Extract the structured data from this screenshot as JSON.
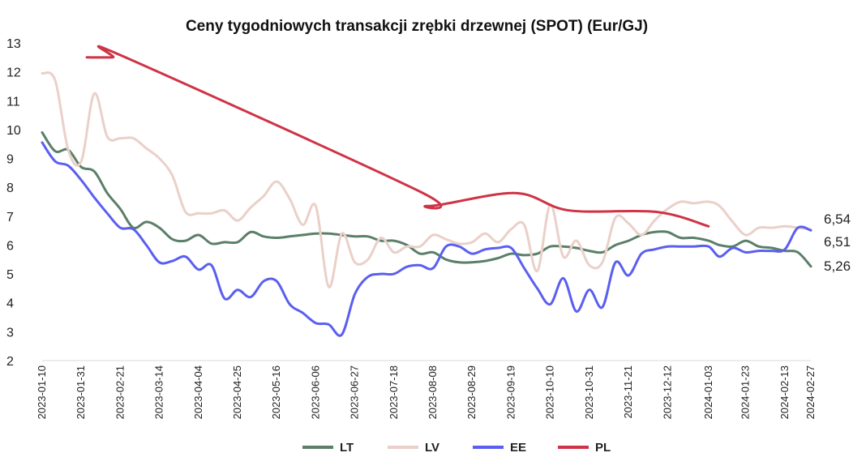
{
  "chart_data": {
    "type": "line",
    "title": "Ceny tygodniowych transakcji zrębki drzewnej (SPOT) (Eur/GJ)",
    "ylim": [
      2,
      13
    ],
    "yticks": [
      "2",
      "3",
      "4",
      "5",
      "6",
      "7",
      "8",
      "9",
      "10",
      "11",
      "12",
      "13"
    ],
    "grid": "none",
    "legend_position": "bottom",
    "x_labels": [
      "2023-01-10",
      "2023-01-31",
      "2023-02-21",
      "2023-03-14",
      "2023-04-04",
      "2023-04-25",
      "2023-05-16",
      "2023-06-06",
      "2023-06-27",
      "2023-07-18",
      "2023-08-08",
      "2023-08-29",
      "2023-09-19",
      "2023-10-10",
      "2023-10-31",
      "2023-11-21",
      "2023-12-12",
      "2024-01-03",
      "2024-01-23",
      "2024-02-13",
      "2024-02-27"
    ],
    "end_labels": [
      "6,54",
      "6,51",
      "5,26"
    ],
    "series": [
      {
        "name": "LT",
        "color": "#5b7f68",
        "points": [
          [
            "2023-01-10",
            9.9
          ],
          [
            "2023-01-17",
            9.25
          ],
          [
            "2023-01-24",
            9.3
          ],
          [
            "2023-01-31",
            8.7
          ],
          [
            "2023-02-07",
            8.55
          ],
          [
            "2023-02-14",
            7.8
          ],
          [
            "2023-02-21",
            7.25
          ],
          [
            "2023-02-28",
            6.6
          ],
          [
            "2023-03-07",
            6.8
          ],
          [
            "2023-03-14",
            6.6
          ],
          [
            "2023-03-21",
            6.2
          ],
          [
            "2023-03-28",
            6.15
          ],
          [
            "2023-04-04",
            6.35
          ],
          [
            "2023-04-11",
            6.05
          ],
          [
            "2023-04-18",
            6.1
          ],
          [
            "2023-04-25",
            6.1
          ],
          [
            "2023-05-02",
            6.45
          ],
          [
            "2023-05-09",
            6.3
          ],
          [
            "2023-05-16",
            6.25
          ],
          [
            "2023-05-23",
            6.3
          ],
          [
            "2023-05-30",
            6.35
          ],
          [
            "2023-06-06",
            6.4
          ],
          [
            "2023-06-13",
            6.4
          ],
          [
            "2023-06-20",
            6.35
          ],
          [
            "2023-06-27",
            6.3
          ],
          [
            "2023-07-04",
            6.3
          ],
          [
            "2023-07-11",
            6.15
          ],
          [
            "2023-07-18",
            6.15
          ],
          [
            "2023-07-25",
            6.0
          ],
          [
            "2023-08-01",
            5.7
          ],
          [
            "2023-08-08",
            5.75
          ],
          [
            "2023-08-15",
            5.5
          ],
          [
            "2023-08-22",
            5.4
          ],
          [
            "2023-08-29",
            5.4
          ],
          [
            "2023-09-05",
            5.45
          ],
          [
            "2023-09-12",
            5.55
          ],
          [
            "2023-09-19",
            5.7
          ],
          [
            "2023-09-26",
            5.65
          ],
          [
            "2023-10-03",
            5.7
          ],
          [
            "2023-10-10",
            5.95
          ],
          [
            "2023-10-17",
            5.95
          ],
          [
            "2023-10-24",
            5.9
          ],
          [
            "2023-10-31",
            5.8
          ],
          [
            "2023-11-07",
            5.75
          ],
          [
            "2023-11-14",
            6.0
          ],
          [
            "2023-11-21",
            6.15
          ],
          [
            "2023-11-28",
            6.35
          ],
          [
            "2023-12-05",
            6.45
          ],
          [
            "2023-12-12",
            6.45
          ],
          [
            "2023-12-19",
            6.25
          ],
          [
            "2023-12-26",
            6.25
          ],
          [
            "2024-01-03",
            6.15
          ],
          [
            "2024-01-09",
            6.0
          ],
          [
            "2024-01-16",
            5.95
          ],
          [
            "2024-01-23",
            6.15
          ],
          [
            "2024-01-30",
            5.95
          ],
          [
            "2024-02-06",
            5.9
          ],
          [
            "2024-02-13",
            5.8
          ],
          [
            "2024-02-20",
            5.75
          ],
          [
            "2024-02-27",
            5.26
          ]
        ]
      },
      {
        "name": "LV",
        "color": "#ead0c8",
        "points": [
          [
            "2023-01-10",
            11.95
          ],
          [
            "2023-01-17",
            11.7
          ],
          [
            "2023-01-24",
            9.3
          ],
          [
            "2023-01-31",
            8.9
          ],
          [
            "2023-02-07",
            11.25
          ],
          [
            "2023-02-14",
            9.75
          ],
          [
            "2023-02-21",
            9.7
          ],
          [
            "2023-02-28",
            9.7
          ],
          [
            "2023-03-07",
            9.35
          ],
          [
            "2023-03-14",
            9.0
          ],
          [
            "2023-03-21",
            8.4
          ],
          [
            "2023-03-28",
            7.15
          ],
          [
            "2023-04-04",
            7.1
          ],
          [
            "2023-04-11",
            7.1
          ],
          [
            "2023-04-18",
            7.2
          ],
          [
            "2023-04-25",
            6.85
          ],
          [
            "2023-05-02",
            7.3
          ],
          [
            "2023-05-09",
            7.7
          ],
          [
            "2023-05-16",
            8.2
          ],
          [
            "2023-05-23",
            7.6
          ],
          [
            "2023-05-30",
            6.7
          ],
          [
            "2023-06-06",
            7.35
          ],
          [
            "2023-06-13",
            4.55
          ],
          [
            "2023-06-20",
            6.4
          ],
          [
            "2023-06-27",
            5.4
          ],
          [
            "2023-07-04",
            5.5
          ],
          [
            "2023-07-11",
            6.25
          ],
          [
            "2023-07-18",
            5.75
          ],
          [
            "2023-07-25",
            5.95
          ],
          [
            "2023-08-01",
            5.95
          ],
          [
            "2023-08-08",
            6.35
          ],
          [
            "2023-08-15",
            6.2
          ],
          [
            "2023-08-22",
            6.05
          ],
          [
            "2023-08-29",
            6.1
          ],
          [
            "2023-09-05",
            6.4
          ],
          [
            "2023-09-12",
            6.1
          ],
          [
            "2023-09-19",
            6.55
          ],
          [
            "2023-09-26",
            6.7
          ],
          [
            "2023-10-03",
            5.1
          ],
          [
            "2023-10-10",
            7.4
          ],
          [
            "2023-10-17",
            5.6
          ],
          [
            "2023-10-24",
            6.15
          ],
          [
            "2023-10-31",
            5.3
          ],
          [
            "2023-11-07",
            5.4
          ],
          [
            "2023-11-14",
            6.95
          ],
          [
            "2023-11-21",
            6.75
          ],
          [
            "2023-11-28",
            6.35
          ],
          [
            "2023-12-05",
            6.85
          ],
          [
            "2023-12-12",
            7.25
          ],
          [
            "2023-12-19",
            7.5
          ],
          [
            "2023-12-26",
            7.45
          ],
          [
            "2024-01-03",
            7.5
          ],
          [
            "2024-01-09",
            7.35
          ],
          [
            "2024-01-16",
            6.8
          ],
          [
            "2024-01-23",
            6.35
          ],
          [
            "2024-01-30",
            6.6
          ],
          [
            "2024-02-06",
            6.6
          ],
          [
            "2024-02-13",
            6.65
          ],
          [
            "2024-02-20",
            6.6
          ],
          [
            "2024-02-27",
            6.54
          ]
        ]
      },
      {
        "name": "EE",
        "color": "#5a5ff0",
        "points": [
          [
            "2023-01-10",
            9.55
          ],
          [
            "2023-01-17",
            8.9
          ],
          [
            "2023-01-24",
            8.75
          ],
          [
            "2023-01-31",
            8.25
          ],
          [
            "2023-02-07",
            7.65
          ],
          [
            "2023-02-14",
            7.1
          ],
          [
            "2023-02-21",
            6.6
          ],
          [
            "2023-02-28",
            6.55
          ],
          [
            "2023-03-07",
            6.0
          ],
          [
            "2023-03-14",
            5.4
          ],
          [
            "2023-03-21",
            5.45
          ],
          [
            "2023-03-28",
            5.6
          ],
          [
            "2023-04-04",
            5.15
          ],
          [
            "2023-04-11",
            5.3
          ],
          [
            "2023-04-18",
            4.15
          ],
          [
            "2023-04-25",
            4.45
          ],
          [
            "2023-05-02",
            4.2
          ],
          [
            "2023-05-09",
            4.75
          ],
          [
            "2023-05-16",
            4.75
          ],
          [
            "2023-05-23",
            3.95
          ],
          [
            "2023-05-30",
            3.65
          ],
          [
            "2023-06-06",
            3.3
          ],
          [
            "2023-06-13",
            3.25
          ],
          [
            "2023-06-20",
            2.9
          ],
          [
            "2023-06-27",
            4.3
          ],
          [
            "2023-07-04",
            4.9
          ],
          [
            "2023-07-11",
            5.0
          ],
          [
            "2023-07-18",
            5.0
          ],
          [
            "2023-07-25",
            5.25
          ],
          [
            "2023-08-01",
            5.3
          ],
          [
            "2023-08-08",
            5.2
          ],
          [
            "2023-08-15",
            5.95
          ],
          [
            "2023-08-22",
            5.95
          ],
          [
            "2023-08-29",
            5.7
          ],
          [
            "2023-09-05",
            5.85
          ],
          [
            "2023-09-12",
            5.9
          ],
          [
            "2023-09-19",
            5.9
          ],
          [
            "2023-09-26",
            5.2
          ],
          [
            "2023-10-03",
            4.5
          ],
          [
            "2023-10-10",
            3.95
          ],
          [
            "2023-10-17",
            4.85
          ],
          [
            "2023-10-24",
            3.7
          ],
          [
            "2023-10-31",
            4.45
          ],
          [
            "2023-11-07",
            3.85
          ],
          [
            "2023-11-14",
            5.4
          ],
          [
            "2023-11-21",
            4.95
          ],
          [
            "2023-11-28",
            5.7
          ],
          [
            "2023-12-05",
            5.85
          ],
          [
            "2023-12-12",
            5.95
          ],
          [
            "2023-12-19",
            5.95
          ],
          [
            "2023-12-26",
            5.95
          ],
          [
            "2024-01-03",
            5.95
          ],
          [
            "2024-01-09",
            5.6
          ],
          [
            "2024-01-16",
            5.9
          ],
          [
            "2024-01-23",
            5.75
          ],
          [
            "2024-01-30",
            5.8
          ],
          [
            "2024-02-06",
            5.8
          ],
          [
            "2024-02-13",
            5.85
          ],
          [
            "2024-02-20",
            6.6
          ],
          [
            "2024-02-27",
            6.51
          ]
        ]
      },
      {
        "name": "PL",
        "color": "#cf3346",
        "points": [
          [
            "2023-02-03",
            12.5
          ],
          [
            "2023-02-17",
            12.5
          ],
          [
            "2023-02-22",
            12.55
          ],
          [
            "2023-08-01",
            7.85
          ],
          [
            "2023-08-05",
            7.35
          ],
          [
            "2023-09-21",
            7.8
          ],
          [
            "2023-10-20",
            7.2
          ],
          [
            "2023-12-06",
            7.15
          ],
          [
            "2024-01-03",
            6.65
          ]
        ]
      }
    ]
  }
}
